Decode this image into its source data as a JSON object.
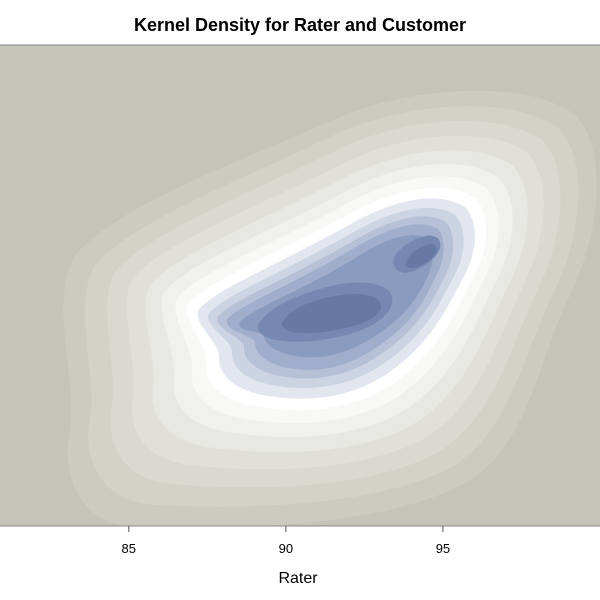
{
  "chart_data": {
    "type": "heatmap",
    "subtype": "contour",
    "title": "Kernel Density for Rater and Customer",
    "xlabel": "Rater",
    "ylabel": "",
    "x_ticks": [
      85,
      90,
      95
    ],
    "xlim": [
      80.9,
      100.0
    ],
    "ylim": [
      0.0,
      1.0
    ],
    "y_axis_visible": false,
    "grid": false,
    "legend": "none",
    "colors": {
      "background": "#c4c4b9",
      "plot_border": "#888888",
      "levels": [
        "#c4c4b9",
        "#cbcbc1",
        "#d2d2c9",
        "#d9d9d1",
        "#e0e0d9",
        "#e8e8e2",
        "#f0f0ec",
        "#f8f8f6",
        "#ffffff",
        "#e2e6ef",
        "#ccd4e3",
        "#b6c1d8",
        "#a0aecc",
        "#8a9bc0",
        "#7588b2",
        "#6678a4"
      ]
    },
    "density_peaks": [
      {
        "x": 92.0,
        "y": 0.42
      },
      {
        "x": 94.6,
        "y": 0.57
      }
    ]
  }
}
